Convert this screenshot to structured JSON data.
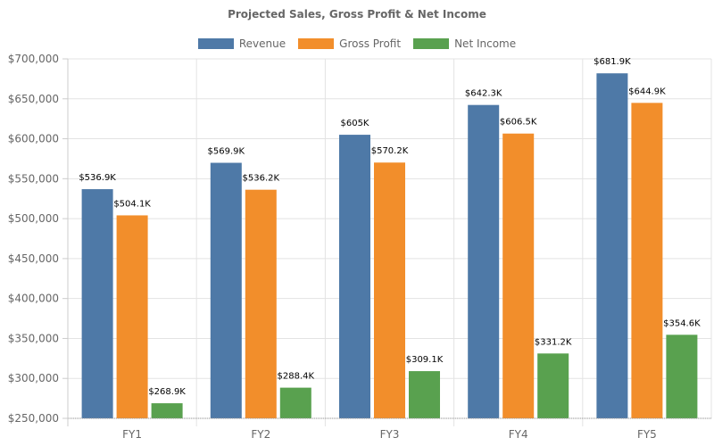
{
  "chart_data": {
    "type": "bar",
    "title": "Projected Sales, Gross Profit & Net Income",
    "xlabel": "",
    "ylabel": "",
    "categories": [
      "FY1",
      "FY2",
      "FY3",
      "FY4",
      "FY5"
    ],
    "ylim": [
      250000,
      700000
    ],
    "yticks": [
      250000,
      300000,
      350000,
      400000,
      450000,
      500000,
      550000,
      600000,
      650000,
      700000
    ],
    "ytick_labels": [
      "$250,000",
      "$300,000",
      "$350,000",
      "$400,000",
      "$450,000",
      "$500,000",
      "$550,000",
      "$600,000",
      "$650,000",
      "$700,000"
    ],
    "grid": true,
    "legend_position": "top-center",
    "series": [
      {
        "name": "Revenue",
        "color": "#4e79a7",
        "values": [
          536900,
          569900,
          605000,
          642300,
          681900
        ],
        "labels": [
          "$536.9K",
          "$569.9K",
          "$605K",
          "$642.3K",
          "$681.9K"
        ]
      },
      {
        "name": "Gross Profit",
        "color": "#f28e2b",
        "values": [
          504100,
          536200,
          570200,
          606500,
          644900
        ],
        "labels": [
          "$504.1K",
          "$536.2K",
          "$570.2K",
          "$606.5K",
          "$644.9K"
        ]
      },
      {
        "name": "Net Income",
        "color": "#59a14f",
        "values": [
          268900,
          288400,
          309100,
          331200,
          354600
        ],
        "labels": [
          "$268.9K",
          "$288.4K",
          "$309.1K",
          "$331.2K",
          "$354.6K"
        ]
      }
    ]
  }
}
